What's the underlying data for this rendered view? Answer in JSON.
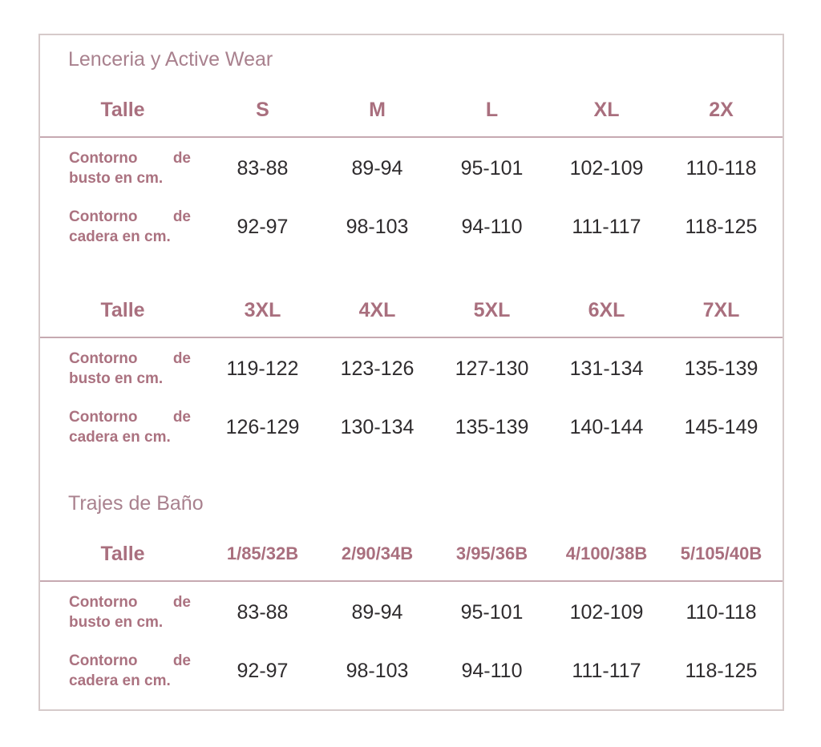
{
  "colors": {
    "accent_header": "#a96f7e",
    "row_label": "#ab7280",
    "section_title": "#a9818e",
    "value_text": "#2f2c2e",
    "card_border": "#d6caca",
    "divider": "#c6a9b1",
    "background": "#ffffff"
  },
  "sections": [
    {
      "title": "Lenceria y Active Wear",
      "tables": [
        {
          "header": [
            "Talle",
            "S",
            "M",
            "L",
            "XL",
            "2X"
          ],
          "rows": [
            {
              "label": "Contorno de busto en cm.",
              "values": [
                "83-88",
                "89-94",
                "95-101",
                "102-109",
                "110-118"
              ]
            },
            {
              "label": "Contorno de cadera en cm.",
              "values": [
                "92-97",
                "98-103",
                "94-110",
                "111-117",
                "118-125"
              ]
            }
          ]
        },
        {
          "header": [
            "Talle",
            "3XL",
            "4XL",
            "5XL",
            "6XL",
            "7XL"
          ],
          "rows": [
            {
              "label": "Contorno de busto en cm.",
              "values": [
                "119-122",
                "123-126",
                "127-130",
                "131-134",
                "135-139"
              ]
            },
            {
              "label": "Contorno de cadera en cm.",
              "values": [
                "126-129",
                "130-134",
                "135-139",
                "140-144",
                "145-149"
              ]
            }
          ]
        }
      ]
    },
    {
      "title": "Trajes de Baño",
      "tables": [
        {
          "header": [
            "Talle",
            "1/85/32B",
            "2/90/34B",
            "3/95/36B",
            "4/100/38B",
            "5/105/40B"
          ],
          "rows": [
            {
              "label": "Contorno de busto en cm.",
              "values": [
                "83-88",
                "89-94",
                "95-101",
                "102-109",
                "110-118"
              ]
            },
            {
              "label": "Contorno de cadera en cm.",
              "values": [
                "92-97",
                "98-103",
                "94-110",
                "111-117",
                "118-125"
              ]
            }
          ]
        }
      ]
    }
  ]
}
